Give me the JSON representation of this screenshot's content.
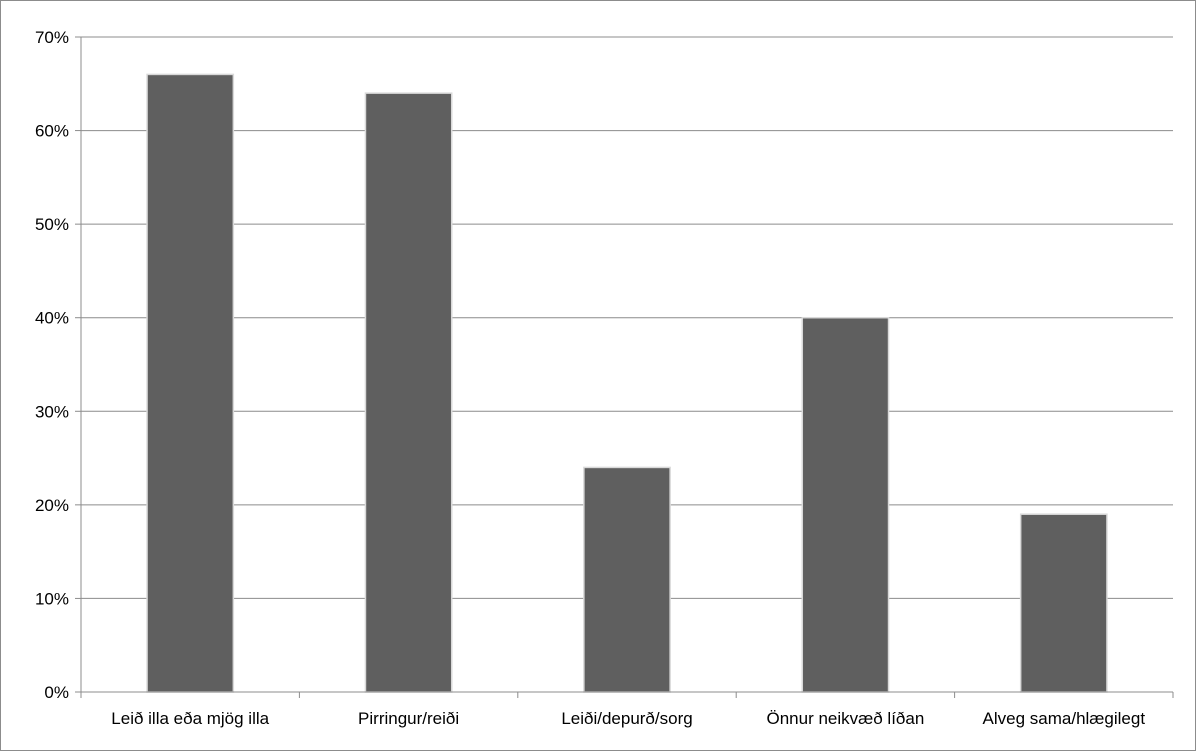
{
  "chart_data": {
    "type": "bar",
    "title": "",
    "xlabel": "",
    "ylabel": "",
    "categories": [
      "Leið illa eða mjög illa",
      "Pirringur/reiði",
      "Leiði/depurð/sorg",
      "Önnur neikvæð líðan",
      "Alveg sama/hlægilegt"
    ],
    "values": [
      66,
      64,
      24,
      40,
      19
    ],
    "ylim": [
      0,
      70
    ],
    "yticks": [
      "0%",
      "10%",
      "20%",
      "30%",
      "40%",
      "50%",
      "60%",
      "70%"
    ],
    "grid": true,
    "legend": "none",
    "colors": {
      "bar": "#5f5f5f",
      "bar_edge": "#d9d9d9",
      "grid": "#8c8c8c",
      "axis": "#8c8c8c"
    }
  }
}
